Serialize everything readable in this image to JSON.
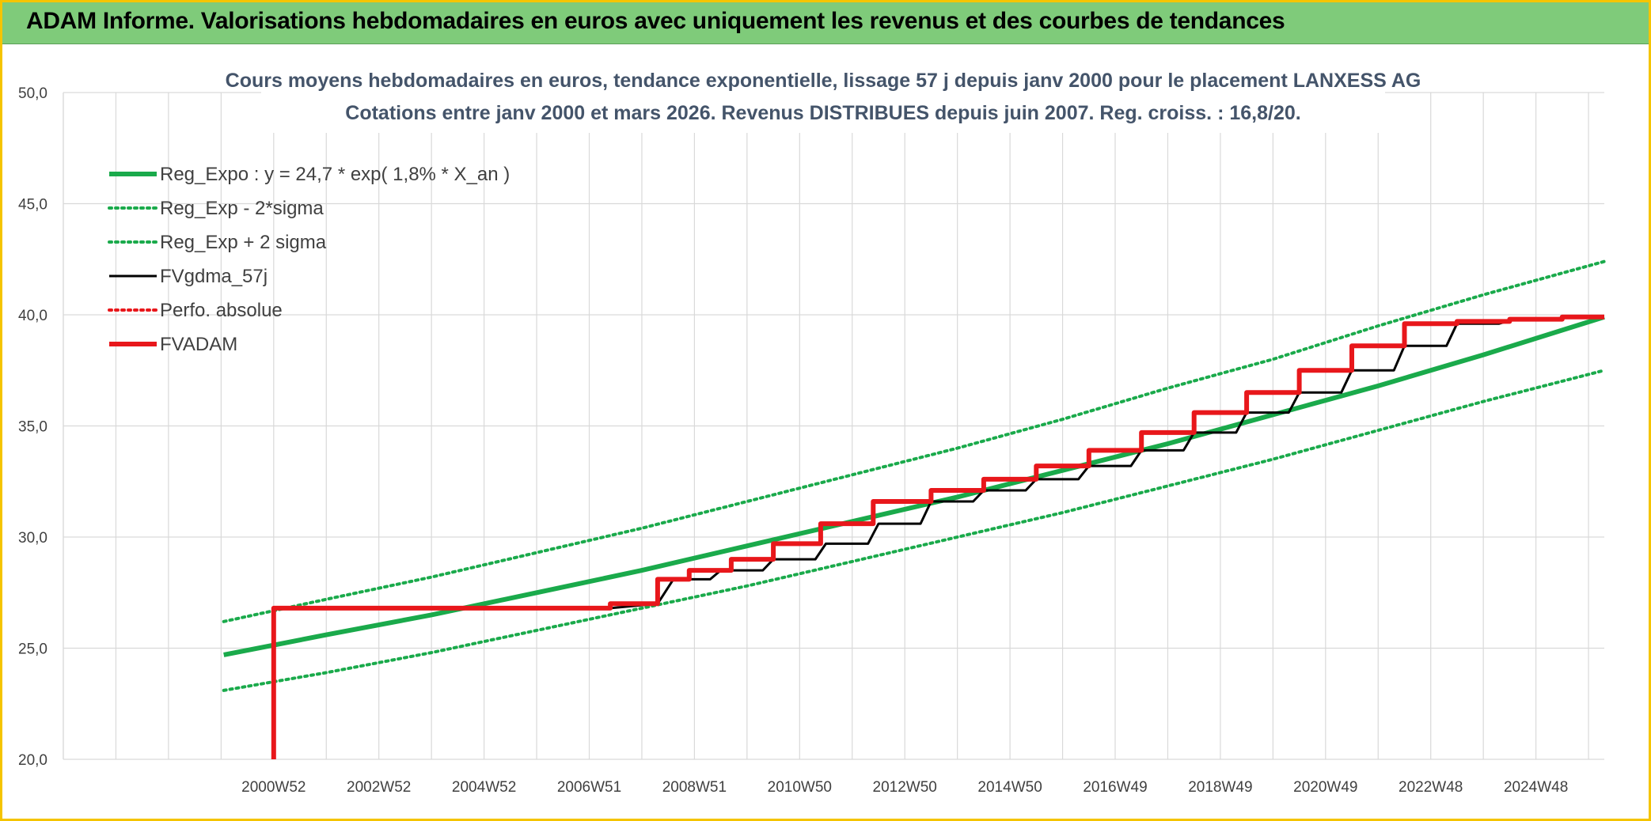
{
  "header": {
    "title": "ADAM Informe. Valorisations hebdomadaires en euros avec uniquement les revenus et des courbes de tendances"
  },
  "colors": {
    "banner": "#7fcb7a",
    "frame": "#f5c400",
    "trend": "#1aaa4b",
    "fvgdma": "#000000",
    "fvadam": "#e8171b",
    "grid": "#d9d9d9",
    "title": "#44546a"
  },
  "chart_data": {
    "type": "line",
    "title_line1": "Cours moyens hebdomadaires en euros, tendance exponentielle, lissage 57 j depuis janv 2000 pour le placement LANXESS AG",
    "title_line2": "Cotations entre janv 2000 et mars 2026. Revenus DISTRIBUES depuis juin 2007. Reg. croiss. : 16,8/20.",
    "xlabel": "",
    "ylabel": "",
    "ylim": [
      20,
      50
    ],
    "yticks": [
      "50,0",
      "45,0",
      "40,0",
      "35,0",
      "30,0",
      "25,0",
      "20,0"
    ],
    "ytick_values": [
      50,
      45,
      40,
      35,
      30,
      25,
      20
    ],
    "xlim": [
      1997.0,
      2026.3
    ],
    "xticks": [
      "2000W52",
      "2002W52",
      "2004W52",
      "2006W51",
      "2008W51",
      "2010W50",
      "2012W50",
      "2014W50",
      "2016W49",
      "2018W49",
      "2020W49",
      "2022W48",
      "2024W48"
    ],
    "xtick_values": [
      2001.0,
      2003.0,
      2005.0,
      2007.0,
      2009.0,
      2011.0,
      2013.0,
      2015.0,
      2017.0,
      2019.0,
      2021.0,
      2023.0,
      2025.0
    ],
    "grid": true,
    "legend_position": "top-left",
    "series": [
      {
        "name": "Reg_Expo : y = 24,7 * exp( 1,8% *  X_an )",
        "style": "solid-thick",
        "color": "#1aaa4b",
        "x": [
          2000.05,
          2002.0,
          2004.0,
          2006.0,
          2008.0,
          2010.0,
          2012.0,
          2014.0,
          2016.0,
          2018.0,
          2020.0,
          2022.0,
          2024.0,
          2026.3
        ],
        "y": [
          24.7,
          25.6,
          26.5,
          27.5,
          28.5,
          29.6,
          30.7,
          31.8,
          33.0,
          34.2,
          35.5,
          36.8,
          38.2,
          39.9
        ]
      },
      {
        "name": "Reg_Exp - 2*sigma",
        "style": "dotted",
        "color": "#1aaa4b",
        "x": [
          2000.05,
          2002.0,
          2004.0,
          2006.0,
          2008.0,
          2010.0,
          2012.0,
          2014.0,
          2016.0,
          2018.0,
          2020.0,
          2022.0,
          2024.0,
          2026.3
        ],
        "y": [
          23.1,
          23.9,
          24.8,
          25.8,
          26.8,
          27.8,
          28.9,
          30.0,
          31.1,
          32.3,
          33.5,
          34.8,
          36.1,
          37.5
        ]
      },
      {
        "name": "Reg_Exp + 2 sigma",
        "style": "dotted",
        "color": "#1aaa4b",
        "x": [
          2000.05,
          2002.0,
          2004.0,
          2006.0,
          2008.0,
          2010.0,
          2012.0,
          2014.0,
          2016.0,
          2018.0,
          2020.0,
          2022.0,
          2024.0,
          2026.3
        ],
        "y": [
          26.2,
          27.2,
          28.2,
          29.3,
          30.4,
          31.6,
          32.8,
          34.0,
          35.3,
          36.7,
          38.0,
          39.5,
          40.9,
          42.4
        ]
      },
      {
        "name": "FVgdma_57j",
        "style": "solid",
        "color": "#000000",
        "x": [
          2007.4,
          2008.3,
          2008.6,
          2009.3,
          2009.5,
          2010.3,
          2010.5,
          2011.3,
          2011.5,
          2012.3,
          2012.5,
          2013.3,
          2013.5,
          2014.3,
          2014.5,
          2015.3,
          2015.5,
          2016.3,
          2016.5,
          2017.3,
          2017.5,
          2018.3,
          2018.5,
          2019.3,
          2019.5,
          2020.3,
          2020.5,
          2021.3,
          2021.5,
          2022.3,
          2022.5,
          2023.3,
          2023.5,
          2024.3,
          2024.6,
          2025.3,
          2025.6,
          2026.3
        ],
        "y": [
          26.8,
          27.0,
          28.1,
          28.1,
          28.5,
          28.5,
          29.0,
          29.0,
          29.7,
          29.7,
          30.6,
          30.6,
          31.6,
          31.6,
          32.1,
          32.1,
          32.6,
          32.6,
          33.2,
          33.2,
          33.9,
          33.9,
          34.7,
          34.7,
          35.6,
          35.6,
          36.5,
          36.5,
          37.5,
          37.5,
          38.6,
          38.6,
          39.6,
          39.6,
          39.8,
          39.8,
          39.9,
          39.9
        ]
      },
      {
        "name": "Perfo. absolue",
        "style": "dotted",
        "color": "#e8171b",
        "x": [],
        "y": []
      },
      {
        "name": "FVADAM",
        "style": "solid-thick",
        "color": "#e8171b",
        "x": [
          2001.0,
          2001.0,
          2007.4,
          2007.4,
          2008.3,
          2008.3,
          2008.9,
          2008.9,
          2009.7,
          2009.7,
          2010.5,
          2010.5,
          2011.4,
          2011.4,
          2012.4,
          2012.4,
          2013.5,
          2013.5,
          2014.5,
          2014.5,
          2015.5,
          2015.5,
          2016.5,
          2016.5,
          2017.5,
          2017.5,
          2018.5,
          2018.5,
          2019.5,
          2019.5,
          2020.5,
          2020.5,
          2021.5,
          2021.5,
          2022.5,
          2022.5,
          2023.5,
          2023.5,
          2024.5,
          2024.5,
          2025.5,
          2025.5,
          2026.3
        ],
        "y": [
          20.0,
          26.8,
          26.8,
          27.0,
          27.0,
          28.1,
          28.1,
          28.5,
          28.5,
          29.0,
          29.0,
          29.7,
          29.7,
          30.6,
          30.6,
          31.6,
          31.6,
          32.1,
          32.1,
          32.6,
          32.6,
          33.2,
          33.2,
          33.9,
          33.9,
          34.7,
          34.7,
          35.6,
          35.6,
          36.5,
          36.5,
          37.5,
          37.5,
          38.6,
          38.6,
          39.6,
          39.6,
          39.7,
          39.7,
          39.8,
          39.8,
          39.9,
          39.9
        ]
      }
    ]
  }
}
